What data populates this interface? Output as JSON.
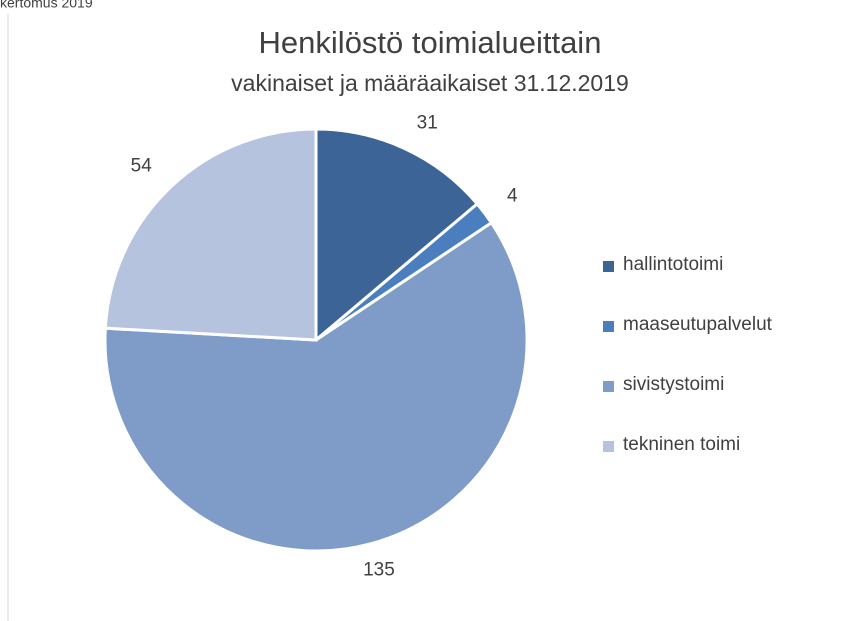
{
  "header": "kertomus 2019",
  "chart_data": {
    "type": "pie",
    "title": "Henkilöstö toimialueittain",
    "subtitle": "vakinaiset ja määräaikaiset 31.12.2019",
    "categories": [
      "hallintotoimi",
      "maaseutupalvelut",
      "sivistystoimi",
      "tekninen toimi"
    ],
    "values": [
      31,
      4,
      135,
      54
    ],
    "colors": [
      "#3d6496",
      "#4a7ebf",
      "#7f9cc8",
      "#b5c3de"
    ],
    "legend": "right"
  }
}
